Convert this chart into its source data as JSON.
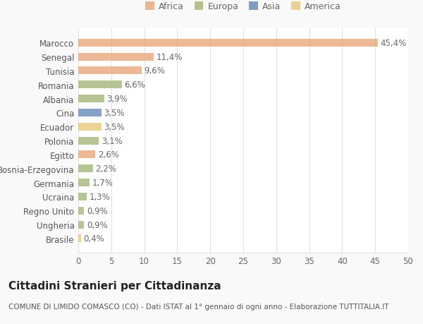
{
  "categories": [
    "Marocco",
    "Senegal",
    "Tunisia",
    "Romania",
    "Albania",
    "Cina",
    "Ecuador",
    "Polonia",
    "Egitto",
    "Bosnia-Erzegovina",
    "Germania",
    "Ucraina",
    "Regno Unito",
    "Ungheria",
    "Brasile"
  ],
  "values": [
    45.4,
    11.4,
    9.6,
    6.6,
    3.9,
    3.5,
    3.5,
    3.1,
    2.6,
    2.2,
    1.7,
    1.3,
    0.9,
    0.9,
    0.4
  ],
  "labels": [
    "45,4%",
    "11,4%",
    "9,6%",
    "6,6%",
    "3,9%",
    "3,5%",
    "3,5%",
    "3,1%",
    "2,6%",
    "2,2%",
    "1,7%",
    "1,3%",
    "0,9%",
    "0,9%",
    "0,4%"
  ],
  "colors": [
    "#e8a97e",
    "#e8a97e",
    "#e8a97e",
    "#a8b87c",
    "#a8b87c",
    "#6b8cba",
    "#e8c97e",
    "#a8b87c",
    "#e8a97e",
    "#a8b87c",
    "#a8b87c",
    "#a8b87c",
    "#a8b87c",
    "#a8b87c",
    "#e8c97e"
  ],
  "legend_labels": [
    "Africa",
    "Europa",
    "Asia",
    "America"
  ],
  "legend_colors": [
    "#e8a97e",
    "#a8b87c",
    "#6b8cba",
    "#e8c97e"
  ],
  "title": "Cittadini Stranieri per Cittadinanza",
  "subtitle": "COMUNE DI LIMIDO COMASCO (CO) - Dati ISTAT al 1° gennaio di ogni anno - Elaborazione TUTTITALIA.IT",
  "xlim": [
    0,
    50
  ],
  "xticks": [
    0,
    5,
    10,
    15,
    20,
    25,
    30,
    35,
    40,
    45,
    50
  ],
  "bg_color": "#f9f9f9",
  "plot_bg_color": "#ffffff",
  "grid_color": "#e0e0e0",
  "bar_height": 0.55,
  "label_fontsize": 8.5,
  "title_fontsize": 11,
  "subtitle_fontsize": 7.5,
  "tick_fontsize": 8.5,
  "legend_fontsize": 9
}
